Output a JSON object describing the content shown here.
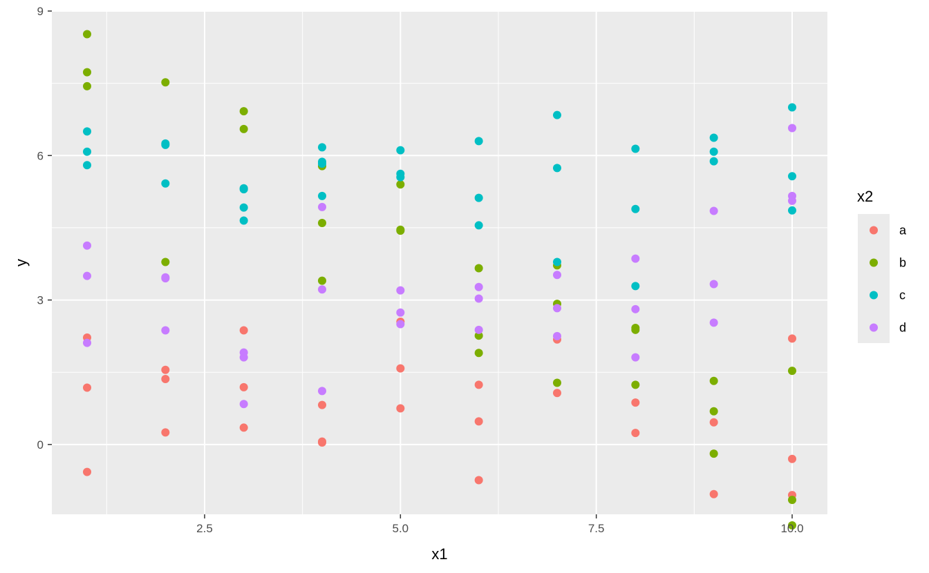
{
  "chart_data": {
    "type": "scatter",
    "title": "",
    "xlabel": "x1",
    "ylabel": "y",
    "xlim": [
      0.55,
      10.45
    ],
    "ylim": [
      -1.45,
      9.0
    ],
    "xticks": [
      2.5,
      5.0,
      7.5,
      10.0
    ],
    "xtick_labels": [
      "2.5",
      "5.0",
      "7.5",
      "10.0"
    ],
    "yticks": [
      0,
      3,
      6,
      9
    ],
    "ytick_labels": [
      "0",
      "3",
      "6",
      "9"
    ],
    "grid": true,
    "legend": {
      "title": "x2",
      "position": "right"
    },
    "series": [
      {
        "name": "a",
        "color": "#F8766D",
        "points": [
          [
            1,
            2.22
          ],
          [
            1,
            1.18
          ],
          [
            1,
            -0.57
          ],
          [
            2,
            1.55
          ],
          [
            2,
            1.36
          ],
          [
            2,
            0.25
          ],
          [
            3,
            2.37
          ],
          [
            3,
            1.19
          ],
          [
            3,
            0.35
          ],
          [
            4,
            0.82
          ],
          [
            4,
            0.06
          ],
          [
            4,
            0.04
          ],
          [
            5,
            2.55
          ],
          [
            5,
            1.58
          ],
          [
            5,
            0.75
          ],
          [
            6,
            1.24
          ],
          [
            6,
            0.48
          ],
          [
            6,
            -0.74
          ],
          [
            7,
            2.18
          ],
          [
            7,
            1.07
          ],
          [
            8,
            0.87
          ],
          [
            8,
            0.24
          ],
          [
            9,
            0.46
          ],
          [
            9,
            -1.03
          ],
          [
            10,
            2.2
          ],
          [
            10,
            -0.3
          ],
          [
            10,
            -1.05
          ]
        ]
      },
      {
        "name": "b",
        "color": "#7CAE00",
        "points": [
          [
            1,
            8.52
          ],
          [
            1,
            7.73
          ],
          [
            1,
            7.44
          ],
          [
            2,
            7.52
          ],
          [
            2,
            3.79
          ],
          [
            3,
            6.92
          ],
          [
            3,
            6.55
          ],
          [
            4,
            5.78
          ],
          [
            4,
            4.6
          ],
          [
            4,
            3.4
          ],
          [
            5,
            5.4
          ],
          [
            5,
            4.46
          ],
          [
            5,
            4.44
          ],
          [
            6,
            3.66
          ],
          [
            6,
            2.26
          ],
          [
            6,
            1.9
          ],
          [
            7,
            3.72
          ],
          [
            7,
            2.92
          ],
          [
            7,
            1.28
          ],
          [
            8,
            2.42
          ],
          [
            8,
            2.38
          ],
          [
            8,
            1.24
          ],
          [
            9,
            1.32
          ],
          [
            9,
            0.69
          ],
          [
            9,
            -0.19
          ],
          [
            10,
            1.53
          ],
          [
            10,
            -1.15
          ],
          [
            10,
            -1.68
          ]
        ]
      },
      {
        "name": "c",
        "color": "#00BFC4",
        "points": [
          [
            1,
            6.5
          ],
          [
            1,
            6.08
          ],
          [
            1,
            5.8
          ],
          [
            2,
            6.25
          ],
          [
            2,
            6.22
          ],
          [
            2,
            5.42
          ],
          [
            3,
            5.32
          ],
          [
            3,
            5.3
          ],
          [
            3,
            4.92
          ],
          [
            3,
            4.65
          ],
          [
            4,
            6.17
          ],
          [
            4,
            5.87
          ],
          [
            4,
            5.83
          ],
          [
            4,
            5.16
          ],
          [
            5,
            6.11
          ],
          [
            5,
            5.62
          ],
          [
            5,
            5.55
          ],
          [
            6,
            6.3
          ],
          [
            6,
            5.12
          ],
          [
            6,
            4.55
          ],
          [
            7,
            6.84
          ],
          [
            7,
            5.74
          ],
          [
            7,
            3.79
          ],
          [
            8,
            6.14
          ],
          [
            8,
            4.89
          ],
          [
            8,
            3.29
          ],
          [
            9,
            6.37
          ],
          [
            9,
            6.08
          ],
          [
            9,
            5.88
          ],
          [
            10,
            7.0
          ],
          [
            10,
            5.57
          ],
          [
            10,
            4.86
          ]
        ]
      },
      {
        "name": "d",
        "color": "#C77CFF",
        "points": [
          [
            1,
            4.13
          ],
          [
            1,
            3.5
          ],
          [
            1,
            2.11
          ],
          [
            2,
            3.47
          ],
          [
            2,
            3.45
          ],
          [
            2,
            2.37
          ],
          [
            3,
            1.91
          ],
          [
            3,
            1.81
          ],
          [
            3,
            0.84
          ],
          [
            4,
            4.93
          ],
          [
            4,
            3.22
          ],
          [
            4,
            1.11
          ],
          [
            5,
            3.2
          ],
          [
            5,
            2.74
          ],
          [
            5,
            2.5
          ],
          [
            6,
            3.27
          ],
          [
            6,
            3.03
          ],
          [
            6,
            2.38
          ],
          [
            7,
            3.52
          ],
          [
            7,
            2.83
          ],
          [
            7,
            2.25
          ],
          [
            8,
            3.86
          ],
          [
            8,
            2.81
          ],
          [
            8,
            1.81
          ],
          [
            9,
            4.85
          ],
          [
            9,
            3.33
          ],
          [
            9,
            2.53
          ],
          [
            10,
            6.57
          ],
          [
            10,
            5.16
          ],
          [
            10,
            5.06
          ]
        ]
      }
    ]
  }
}
